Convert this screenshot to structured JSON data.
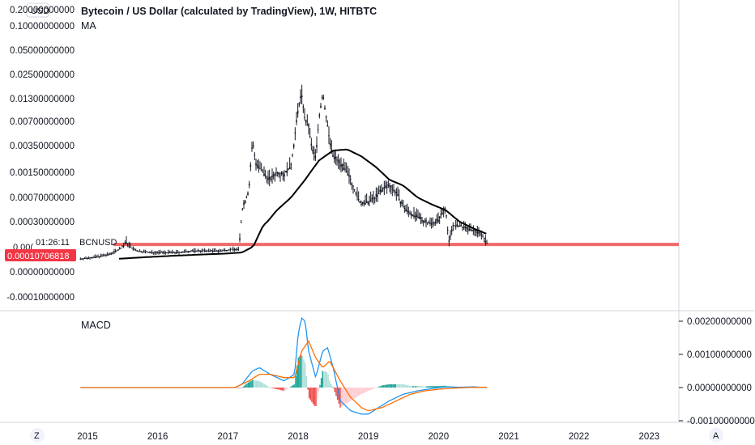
{
  "header": {
    "currency": "USD",
    "title": "Bytecoin / US Dollar (calculated by TradingView), 1W, HITBTC",
    "ma_label": "MA",
    "macd_label": "MACD",
    "symbol_label": "BCNUSD",
    "countdown": "01:26:11",
    "price_tag": "0.00010706818",
    "price_tag_partial": "0.00(",
    "zoom_left": "Z",
    "auto_right": "A"
  },
  "colors": {
    "price_line": "#f06a6a",
    "price_tag_bg": "#f23645",
    "ma": "#000000",
    "macd_line": "#2196f3",
    "signal_line": "#ff6d00",
    "hist_pos": "#26a69a",
    "hist_pos_light": "#b2dfdb",
    "hist_neg": "#ef5350",
    "hist_neg_light": "#ffcdd2",
    "candle": "#131722"
  },
  "chart_data": [
    {
      "type": "line",
      "title": "Bytecoin / US Dollar (calculated by TradingView), 1W, HITBTC",
      "xlabel": "",
      "ylabel": "USD",
      "x_ticks": [
        "2015",
        "2016",
        "2017",
        "2018",
        "2019",
        "2020",
        "2021",
        "2022",
        "2023"
      ],
      "y_ticks": [
        "0.20000000000",
        "0.10000000000",
        "0.05000000000",
        "0.02500000000",
        "0.01300000000",
        "0.00700000000",
        "0.00350000000",
        "0.00150000000",
        "0.00070000000",
        "0.00030000000",
        "0.00000000000",
        "-0.00010000000"
      ],
      "y_scale": "log",
      "series": [
        {
          "name": "BCNUSD",
          "x": [
            2014.9,
            2015.1,
            2015.3,
            2015.45,
            2015.55,
            2015.7,
            2015.9,
            2016.1,
            2016.3,
            2016.5,
            2016.7,
            2016.9,
            2017.05,
            2017.15,
            2017.2,
            2017.3,
            2017.35,
            2017.4,
            2017.5,
            2017.6,
            2017.7,
            2017.8,
            2017.9,
            2018.0,
            2018.05,
            2018.1,
            2018.15,
            2018.2,
            2018.25,
            2018.3,
            2018.35,
            2018.4,
            2018.45,
            2018.5,
            2018.6,
            2018.7,
            2018.8,
            2018.9,
            2019.0,
            2019.1,
            2019.2,
            2019.3,
            2019.4,
            2019.5,
            2019.6,
            2019.7,
            2019.8,
            2019.9,
            2020.0,
            2020.1,
            2020.15,
            2020.2,
            2020.3,
            2020.4,
            2020.5,
            2020.6,
            2020.7
          ],
          "values": [
            2.5e-05,
            3e-05,
            4e-05,
            7e-05,
            0.00012,
            6e-05,
            5e-05,
            5e-05,
            5e-05,
            6e-05,
            6e-05,
            6e-05,
            7e-05,
            7e-05,
            0.00045,
            0.0009,
            0.004,
            0.002,
            0.0015,
            0.0012,
            0.0015,
            0.0014,
            0.0019,
            0.01,
            0.015,
            0.007,
            0.006,
            0.003,
            0.0025,
            0.008,
            0.015,
            0.008,
            0.004,
            0.0025,
            0.002,
            0.0015,
            0.0009,
            0.00055,
            0.0006,
            0.0007,
            0.0009,
            0.001,
            0.0008,
            0.0005,
            0.0004,
            0.00035,
            0.0003,
            0.00028,
            0.00032,
            0.0005,
            0.00012,
            0.00025,
            0.00025,
            0.00022,
            0.0002,
            0.00018,
            0.000107
          ]
        },
        {
          "name": "MA",
          "x": [
            2015.45,
            2015.8,
            2016.2,
            2016.6,
            2017.0,
            2017.2,
            2017.35,
            2017.5,
            2017.7,
            2017.9,
            2018.1,
            2018.3,
            2018.5,
            2018.7,
            2018.9,
            2019.1,
            2019.3,
            2019.5,
            2019.7,
            2019.9,
            2020.1,
            2020.3,
            2020.5,
            2020.7
          ],
          "values": [
            2.5e-05,
            3e-05,
            3.5e-05,
            4e-05,
            4.5e-05,
            5e-05,
            9e-05,
            0.00025,
            0.00045,
            0.0007,
            0.0012,
            0.0022,
            0.003,
            0.0031,
            0.0025,
            0.0018,
            0.0012,
            0.001,
            0.0007,
            0.00055,
            0.00045,
            0.0003,
            0.00022,
            0.00017
          ]
        }
      ],
      "last_price": 0.00010706818
    },
    {
      "type": "line",
      "title": "MACD",
      "y_ticks": [
        "0.00200000000",
        "0.00100000000",
        "0.00000000000",
        "-0.00100000000"
      ],
      "series": [
        {
          "name": "MACD",
          "x": [
            2014.9,
            2017.1,
            2017.2,
            2017.35,
            2017.45,
            2017.6,
            2017.8,
            2017.95,
            2018.0,
            2018.05,
            2018.1,
            2018.15,
            2018.25,
            2018.35,
            2018.42,
            2018.5,
            2018.6,
            2018.75,
            2018.9,
            2019.0,
            2019.15,
            2019.3,
            2019.5,
            2019.7,
            2019.9,
            2020.1,
            2020.3,
            2020.5,
            2020.7
          ],
          "values": [
            0.0,
            0.0,
            0.0001,
            0.0005,
            0.0006,
            0.0004,
            0.0002,
            0.0004,
            0.0016,
            0.0021,
            0.002,
            0.0011,
            0.0003,
            0.0011,
            0.0012,
            0.0006,
            -0.0004,
            -0.0007,
            -0.0008,
            -0.0008,
            -0.0006,
            -0.0004,
            -0.0002,
            -0.0001,
            -3e-05,
            2e-05,
            1e-05,
            2e-05,
            0.0
          ]
        },
        {
          "name": "Signal",
          "x": [
            2014.9,
            2017.1,
            2017.3,
            2017.45,
            2017.6,
            2017.8,
            2017.95,
            2018.05,
            2018.15,
            2018.25,
            2018.35,
            2018.45,
            2018.6,
            2018.75,
            2018.9,
            2019.0,
            2019.2,
            2019.4,
            2019.6,
            2019.8,
            2020.0,
            2020.2,
            2020.4,
            2020.7
          ],
          "values": [
            0.0,
            0.0,
            0.0002,
            0.0004,
            0.0004,
            0.0003,
            0.0003,
            0.0011,
            0.0014,
            0.0009,
            0.0006,
            0.0008,
            0.0002,
            -0.0003,
            -0.0006,
            -0.0007,
            -0.0006,
            -0.0004,
            -0.0002,
            -0.0001,
            -5e-05,
            -2e-05,
            0.0,
            1e-05
          ]
        }
      ]
    }
  ]
}
